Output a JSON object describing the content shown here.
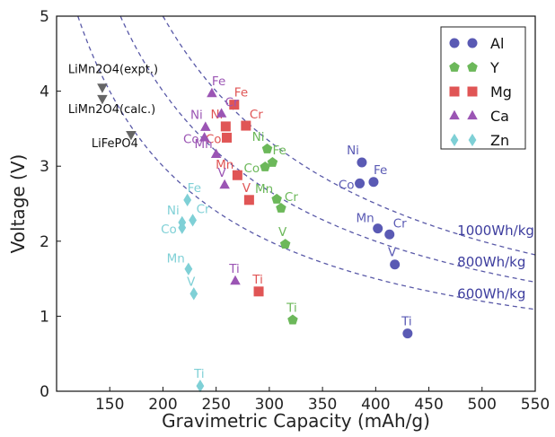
{
  "chart_data": {
    "type": "scatter",
    "xlabel": "Gravimetric Capacity (mAh/g)",
    "ylabel": "Voltage (V)",
    "xlim": [
      100,
      550
    ],
    "ylim": [
      0,
      5
    ],
    "xticks": [
      150,
      200,
      250,
      300,
      350,
      400,
      450,
      500,
      550
    ],
    "yticks": [
      0,
      1,
      2,
      3,
      4,
      5
    ],
    "grid": false,
    "legend_position": "top-right",
    "series": [
      {
        "name": "Al",
        "color": "#5a5ab4",
        "marker": "circle",
        "points": [
          {
            "label": "Ni",
            "x": 387,
            "y": 3.05
          },
          {
            "label": "Fe",
            "x": 398,
            "y": 2.79
          },
          {
            "label": "Co",
            "x": 385,
            "y": 2.77
          },
          {
            "label": "Mn",
            "x": 402,
            "y": 2.17
          },
          {
            "label": "Cr",
            "x": 413,
            "y": 2.09
          },
          {
            "label": "V",
            "x": 418,
            "y": 1.69
          },
          {
            "label": "Ti",
            "x": 430,
            "y": 0.77
          }
        ]
      },
      {
        "name": "Y",
        "color": "#6cb85a",
        "marker": "pentagon",
        "points": [
          {
            "label": "Ni",
            "x": 298,
            "y": 3.23
          },
          {
            "label": "Fe",
            "x": 303,
            "y": 3.05
          },
          {
            "label": "Co",
            "x": 296,
            "y": 2.99
          },
          {
            "label": "Mn",
            "x": 307,
            "y": 2.56
          },
          {
            "label": "Cr",
            "x": 311,
            "y": 2.44
          },
          {
            "label": "V",
            "x": 315,
            "y": 1.96
          },
          {
            "label": "Ti",
            "x": 322,
            "y": 0.95
          }
        ]
      },
      {
        "name": "Mg",
        "color": "#e05555",
        "marker": "square",
        "points": [
          {
            "label": "Fe",
            "x": 267,
            "y": 3.82
          },
          {
            "label": "Cr",
            "x": 278,
            "y": 3.54
          },
          {
            "label": "Ni",
            "x": 259,
            "y": 3.53
          },
          {
            "label": "Co",
            "x": 260,
            "y": 3.38
          },
          {
            "label": "Mn",
            "x": 270,
            "y": 2.88
          },
          {
            "label": "V",
            "x": 281,
            "y": 2.55
          },
          {
            "label": "Ti",
            "x": 290,
            "y": 1.33
          }
        ]
      },
      {
        "name": "Ca",
        "color": "#9b55b4",
        "marker": "triangle",
        "points": [
          {
            "label": "Fe",
            "x": 246,
            "y": 3.97
          },
          {
            "label": "Cr",
            "x": 255,
            "y": 3.7
          },
          {
            "label": "Ni",
            "x": 240,
            "y": 3.52
          },
          {
            "label": "Co",
            "x": 239,
            "y": 3.38
          },
          {
            "label": "Mn",
            "x": 250,
            "y": 3.16
          },
          {
            "label": "V",
            "x": 258,
            "y": 2.75
          },
          {
            "label": "Ti",
            "x": 268,
            "y": 1.47
          }
        ]
      },
      {
        "name": "Zn",
        "color": "#7fd0d6",
        "marker": "diamond",
        "points": [
          {
            "label": "Fe",
            "x": 223,
            "y": 2.55
          },
          {
            "label": "Cr",
            "x": 228,
            "y": 2.28
          },
          {
            "label": "Ni",
            "x": 218,
            "y": 2.25
          },
          {
            "label": "Co",
            "x": 218,
            "y": 2.18
          },
          {
            "label": "Mn",
            "x": 224,
            "y": 1.63
          },
          {
            "label": "V",
            "x": 229,
            "y": 1.3
          },
          {
            "label": "Ti",
            "x": 235,
            "y": 0.07
          }
        ]
      }
    ],
    "reference_points": {
      "color": "#666666",
      "marker": "triangle-down",
      "points": [
        {
          "label": "LiMn2O4(expt.)",
          "x": 143,
          "y": 4.05
        },
        {
          "label": "LiMn2O4(calc.)",
          "x": 143,
          "y": 3.9
        },
        {
          "label": "LiFePO4",
          "x": 170,
          "y": 3.42
        }
      ]
    },
    "energy_density_curves": [
      {
        "label": "1000Wh/kg",
        "value": 1000
      },
      {
        "label": "800Wh/kg",
        "value": 800
      },
      {
        "label": "600Wh/kg",
        "value": 600
      }
    ]
  }
}
